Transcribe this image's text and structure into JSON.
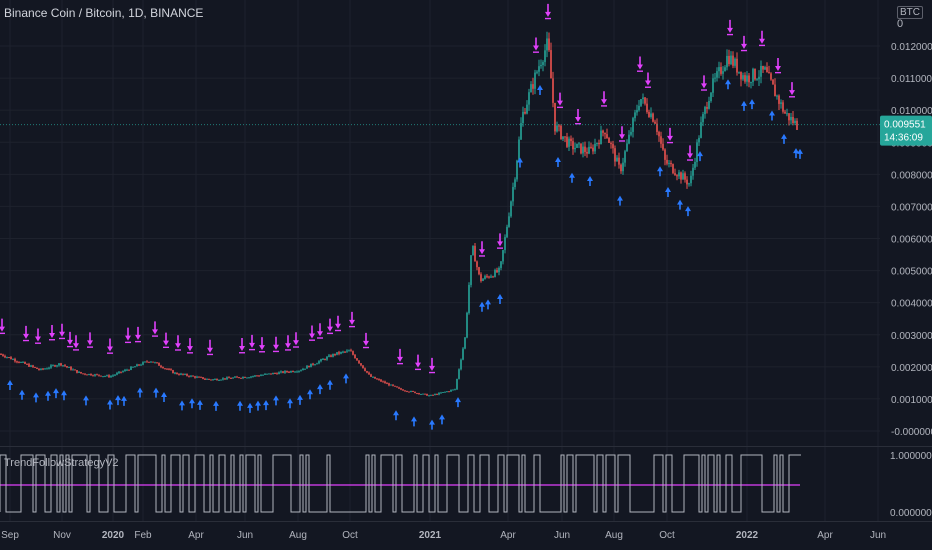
{
  "header": {
    "symbol_title": "Binance Coin / Bitcoin, 1D, BINANCE",
    "currency_label": "BTC",
    "currency_zero": "0"
  },
  "price_tag": {
    "value": "0.009551",
    "countdown": "14:36:09",
    "color": "#26a69a"
  },
  "indicator": {
    "name": "TrendFollowStrategyV2",
    "upper_label": "1.0000000",
    "lower_label": "0.0000000"
  },
  "colors": {
    "up": "#26a69a",
    "down": "#ef5350",
    "buy_arrow": "#2979ff",
    "sell_arrow": "#e040fb",
    "signal_line": "#e040fb",
    "osc_line": "#b2b5be"
  },
  "chart_data": {
    "type": "candlestick",
    "title": "Binance Coin / Bitcoin, 1D, BINANCE",
    "y_ticks": [
      "0.012000",
      "0.011000",
      "0.010000",
      "0.009000",
      "0.008000",
      "0.007000",
      "0.006000",
      "0.005000",
      "0.004000",
      "0.003000",
      "0.002000",
      "0.001000",
      "-0.000000"
    ],
    "x_ticks": [
      "Sep",
      "Nov",
      "2020",
      "Feb",
      "Apr",
      "Jun",
      "Aug",
      "Oct",
      "2021",
      "Apr",
      "Jun",
      "Aug",
      "Oct",
      "2022",
      "Apr",
      "Jun"
    ],
    "ylim": [
      -0.0004,
      0.0128
    ],
    "last_price": 0.009551,
    "price_path": [
      [
        0,
        0.0024
      ],
      [
        40,
        0.0019
      ],
      [
        60,
        0.0021
      ],
      [
        80,
        0.0018
      ],
      [
        110,
        0.0017
      ],
      [
        150,
        0.0022
      ],
      [
        175,
        0.0018
      ],
      [
        210,
        0.0016
      ],
      [
        250,
        0.0017
      ],
      [
        300,
        0.0019
      ],
      [
        335,
        0.0024
      ],
      [
        350,
        0.0025
      ],
      [
        370,
        0.0017
      ],
      [
        400,
        0.0013
      ],
      [
        430,
        0.0011
      ],
      [
        455,
        0.0013
      ],
      [
        465,
        0.0029
      ],
      [
        472,
        0.0058
      ],
      [
        480,
        0.0047
      ],
      [
        500,
        0.005
      ],
      [
        515,
        0.008
      ],
      [
        522,
        0.0098
      ],
      [
        540,
        0.0115
      ],
      [
        548,
        0.0121
      ],
      [
        555,
        0.0095
      ],
      [
        570,
        0.0089
      ],
      [
        590,
        0.0087
      ],
      [
        605,
        0.0094
      ],
      [
        620,
        0.0081
      ],
      [
        640,
        0.0104
      ],
      [
        655,
        0.0097
      ],
      [
        665,
        0.0084
      ],
      [
        690,
        0.0077
      ],
      [
        700,
        0.0094
      ],
      [
        710,
        0.0106
      ],
      [
        728,
        0.0117
      ],
      [
        745,
        0.011
      ],
      [
        765,
        0.0112
      ],
      [
        785,
        0.0099
      ],
      [
        798,
        0.0095
      ]
    ],
    "signal_pane": {
      "type": "step-line",
      "ylim": [
        0,
        1
      ],
      "signal_level": 0.5,
      "oscillator": "alternating 0/1 strategy state"
    }
  }
}
